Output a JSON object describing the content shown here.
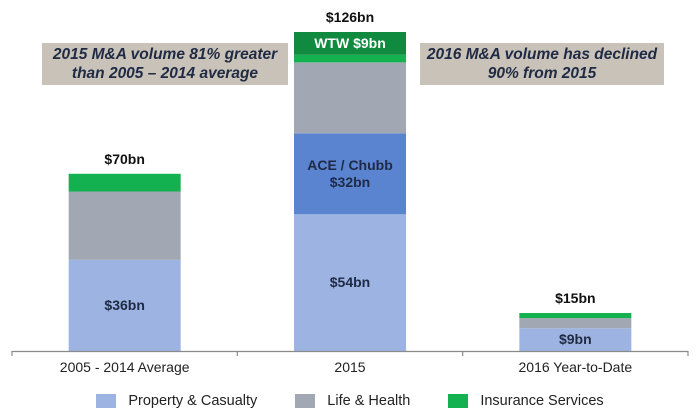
{
  "chart_data": {
    "type": "bar",
    "stacked": true,
    "title": "",
    "xlabel": "",
    "ylabel": "",
    "ylim": [
      0,
      126
    ],
    "grid": false,
    "legend_position": "bottom",
    "categories": [
      "2005 - 2014 Average",
      "2015",
      "2016 Year-to-Date"
    ],
    "series": [
      {
        "name": "Property & Casualty",
        "color": "#9db4e3",
        "values": [
          36,
          54,
          9
        ]
      },
      {
        "name": "ACE / Chubb",
        "color": "#5b84d0",
        "values": [
          0,
          32,
          0
        ],
        "in_legend": false
      },
      {
        "name": "Life & Health",
        "color": "#a2a8b3",
        "values": [
          27,
          28,
          4
        ]
      },
      {
        "name": "Insurance Services",
        "color": "#14b150",
        "values": [
          7,
          3,
          2
        ]
      },
      {
        "name": "WTW",
        "color": "#0f8a3f",
        "values": [
          0,
          9,
          0
        ],
        "in_legend": false
      }
    ],
    "totals": [
      "$70bn",
      "$126bn",
      "$15bn"
    ],
    "segment_labels": [
      {
        "bar": 0,
        "series": 0,
        "lines": [
          "$36bn"
        ]
      },
      {
        "bar": 1,
        "series": 0,
        "lines": [
          "$54bn"
        ]
      },
      {
        "bar": 1,
        "series": 1,
        "lines": [
          "ACE / Chubb",
          "$32bn"
        ]
      },
      {
        "bar": 1,
        "series": 4,
        "lines": [
          "WTW $9bn"
        ],
        "color": "#ffffff"
      },
      {
        "bar": 2,
        "series": 0,
        "lines": [
          "$9bn"
        ]
      }
    ],
    "annotations": [
      {
        "lines": [
          "2015 M&A volume 81% greater",
          "than 2005 – 2014 average"
        ]
      },
      {
        "lines": [
          "2016 M&A volume has declined",
          "90% from 2015"
        ]
      }
    ]
  },
  "legend": [
    {
      "label": "Property & Casualty",
      "color": "#9db4e3"
    },
    {
      "label": "Life & Health",
      "color": "#a2a8b3"
    },
    {
      "label": "Insurance Services",
      "color": "#14b150"
    }
  ]
}
